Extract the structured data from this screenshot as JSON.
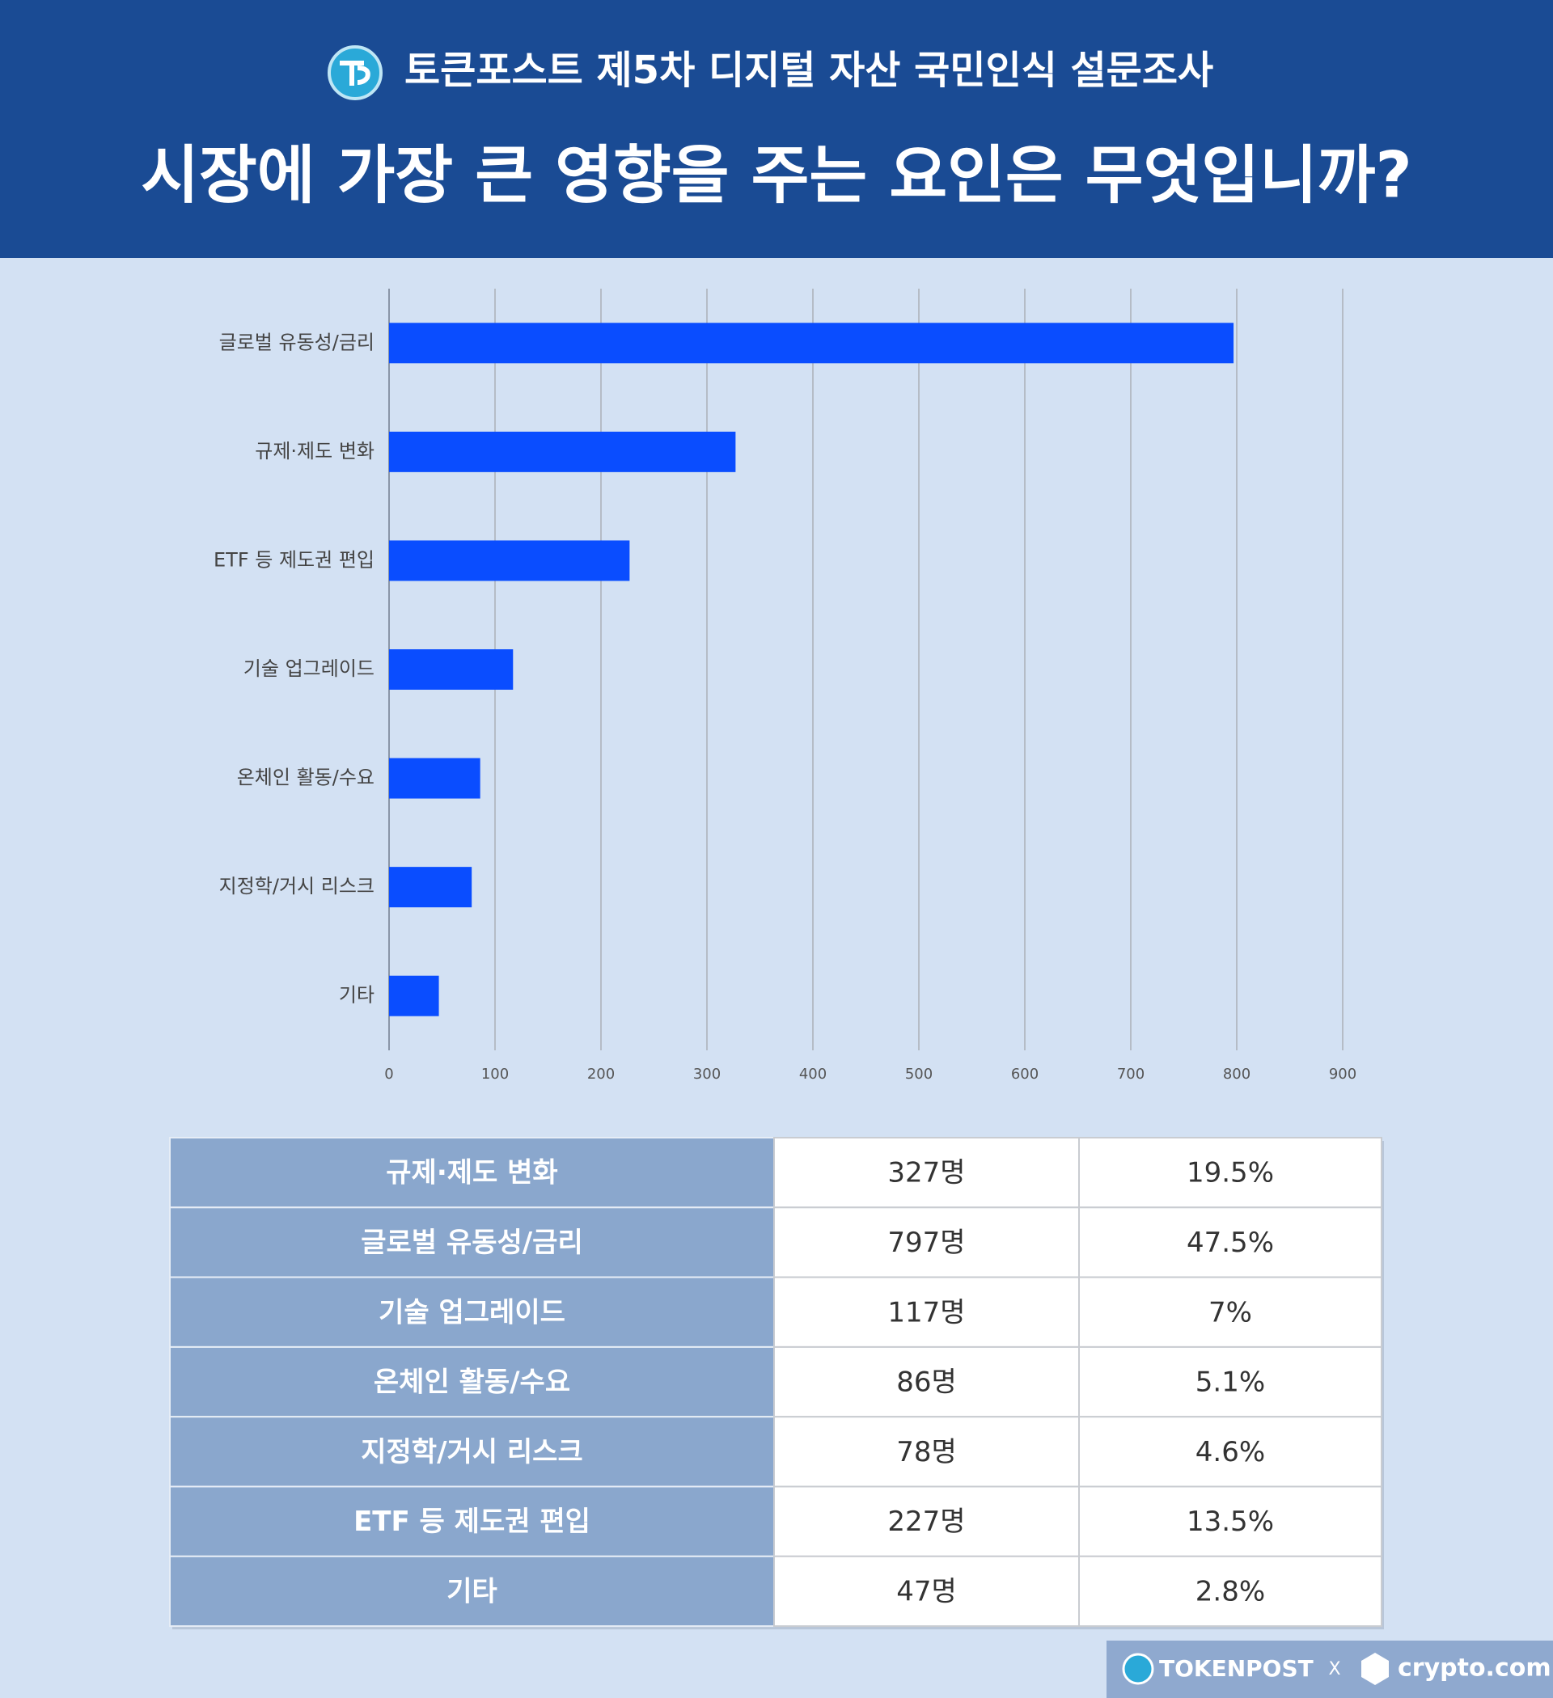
{
  "header": {
    "subtitle": "토큰포스트 제5차 디지털 자산 국민인식 설문조사",
    "title": "시장에 가장 큰 영향을 주는 요인은 무엇입니까?"
  },
  "chart_data": {
    "type": "bar",
    "orientation": "horizontal",
    "categories": [
      "글로벌 유동성/금리",
      "규제·제도 변화",
      "ETF 등 제도권 편입",
      "기술 업그레이드",
      "온체인 활동/수요",
      "지정학/거시 리스크",
      "기타"
    ],
    "values": [
      797,
      327,
      227,
      117,
      86,
      78,
      47
    ],
    "color": "#0a4dff",
    "xlim": [
      0,
      900
    ],
    "xticks": [
      0,
      100,
      200,
      300,
      400,
      500,
      600,
      700,
      800,
      900
    ],
    "grid": true
  },
  "table": {
    "rows": [
      [
        "규제·제도 변화",
        "327명",
        "19.5%"
      ],
      [
        "글로벌 유동성/금리",
        "797명",
        "47.5%"
      ],
      [
        "기술 업그레이드",
        "117명",
        "7%"
      ],
      [
        "온체인 활동/수요",
        "86명",
        "5.1%"
      ],
      [
        "지정학/거시 리스크",
        "78명",
        "4.6%"
      ],
      [
        "ETF 등 제도권 편입",
        "227명",
        "13.5%"
      ],
      [
        "기타",
        "47명",
        "2.8%"
      ]
    ]
  },
  "footer": {
    "brand1": "TOKENPOST",
    "separator": "X",
    "brand2": "crypto.com"
  }
}
